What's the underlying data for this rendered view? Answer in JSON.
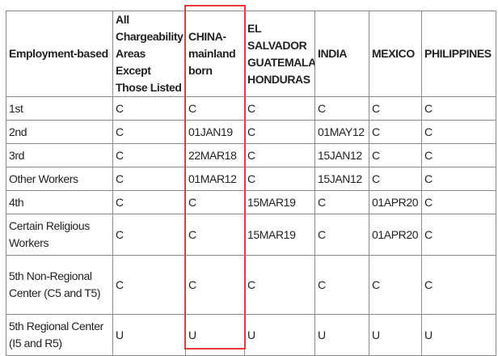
{
  "table": {
    "headers": [
      "Employment-based",
      "All Chargeability Areas Except Those Listed",
      "CHINA-mainland born",
      "EL SALVADOR GUATEMALA HONDURAS",
      "INDIA",
      "MEXICO",
      "PHILIPPINES"
    ],
    "rows": [
      [
        "1st",
        "C",
        "C",
        "C",
        "C",
        "C",
        "C"
      ],
      [
        "2nd",
        "C",
        "01JAN19",
        "C",
        "01MAY12",
        "C",
        "C"
      ],
      [
        "3rd",
        "C",
        "22MAR18",
        "C",
        "15JAN12",
        "C",
        "C"
      ],
      [
        "Other Workers",
        "C",
        "01MAR12",
        "C",
        "15JAN12",
        "C",
        "C"
      ],
      [
        "4th",
        "C",
        "C",
        "15MAR19",
        "C",
        "01APR20",
        "C"
      ],
      [
        "Certain Religious Workers",
        "C",
        "C",
        "15MAR19",
        "C",
        "01APR20",
        "C"
      ],
      [
        "5th Non-Regional Center (C5 and T5)",
        "C",
        "C",
        "C",
        "C",
        "C",
        "C"
      ],
      [
        "5th Regional Center (I5 and R5)",
        "U",
        "U",
        "U",
        "U",
        "U",
        "U"
      ]
    ]
  },
  "highlight": {
    "column": "CHINA-mainland born",
    "color": "#e8393c"
  }
}
